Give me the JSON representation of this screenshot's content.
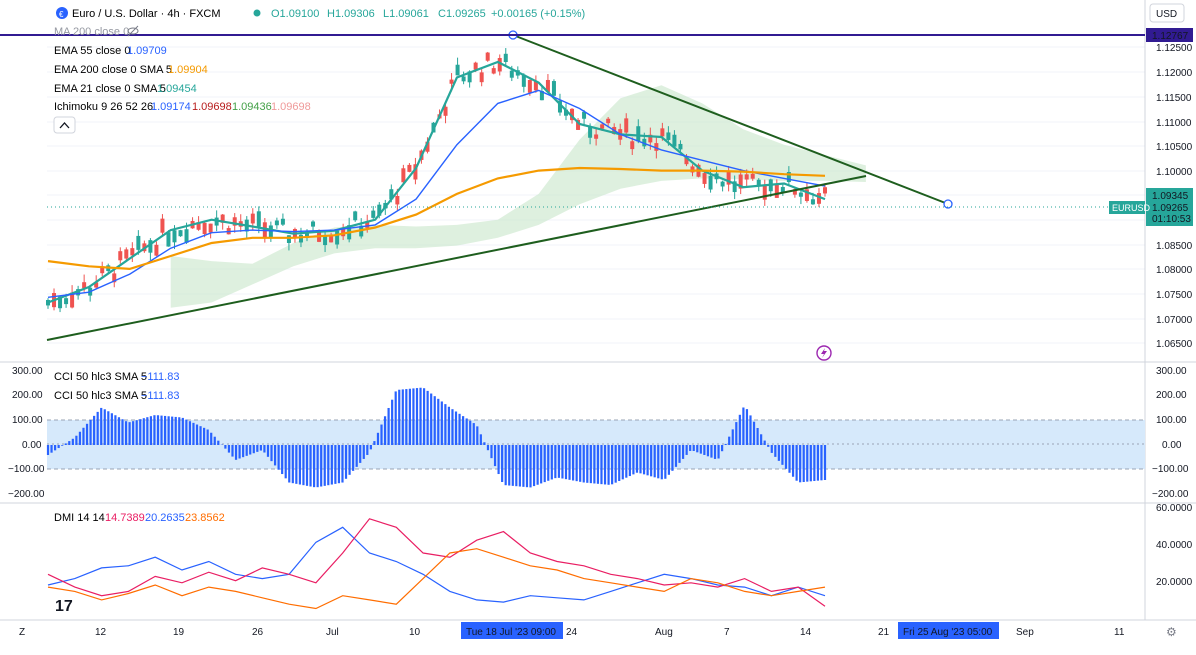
{
  "header": {
    "symbol_title": "Euro / U.S. Dollar · 4h · FXCM",
    "open": "O1.09100",
    "high": "H1.09306",
    "low": "L1.09061",
    "close": "C1.09265",
    "change": "+0.00165 (+0.15%)",
    "currency": "USD"
  },
  "indicators": {
    "ma200": "MA 200 close 0",
    "ema55_label": "EMA 55 close 0",
    "ema55_value": "1.09709",
    "ema200_label": "EMA 200 close 0 SMA 5",
    "ema200_value": "1.09904",
    "ema21_label": "EMA 21 close 0 SMA 5",
    "ema21_value": "1.09454",
    "ichimoku_label": "Ichimoku 9 26 52 26",
    "ichimoku_v1": "1.09174",
    "ichimoku_v2": "1.09698",
    "ichimoku_v3": "1.09436",
    "ichimoku_v4": "1.09698",
    "cci1_label": "CCI 50 hlc3 SMA 5",
    "cci1_value": "−111.83",
    "cci2_label": "CCI 50 hlc3 SMA 5",
    "cci2_value": "−111.83",
    "dmi_label": "DMI 14 14",
    "dmi_v1": "14.7389",
    "dmi_v2": "20.2635",
    "dmi_v3": "23.8562"
  },
  "price_axis": {
    "ticks": [
      "1.12500",
      "1.12000",
      "1.11500",
      "1.11000",
      "1.10500",
      "1.10000",
      "1.08500",
      "1.08000",
      "1.07500",
      "1.07000",
      "1.06500"
    ],
    "badge_high": "1.12767",
    "badge_ema": "1.09345",
    "badge_price": "1.09265",
    "badge_timer": "01:10:53",
    "symbol_tag": "EURUSD"
  },
  "cci_axis": {
    "ticks": [
      "300.00",
      "200.00",
      "100.00",
      "0.00",
      "−100.00",
      "−200.00"
    ]
  },
  "dmi_axis": {
    "ticks": [
      "60.0000",
      "40.0000",
      "20.0000"
    ]
  },
  "time_axis": {
    "labels": [
      "12",
      "19",
      "26",
      "Jul",
      "10",
      "24",
      "Aug",
      "7",
      "14",
      "21",
      "Sep",
      "11"
    ],
    "cursor_label": "Tue 18 Jul '23   09:00",
    "end_label": "Fri 25 Aug '23   05:00",
    "z_btn": "Z",
    "gear_btn": "⚙"
  },
  "logo": "17",
  "colors": {
    "candle_up": "#26a69a",
    "candle_down": "#ef5350",
    "ema21": "#26a69a",
    "ema55": "#2962ff",
    "ema200": "#f59a00",
    "trendline": "#1e5e1e",
    "hline": "#311b92",
    "cci": "#2962ff",
    "cci_band": "#d6e9fb",
    "dmi_plus": "#2962ff",
    "dmi_minus": "#e91e63",
    "adx": "#ff6d00"
  },
  "chart_data": [
    {
      "type": "candlestick",
      "title": "Euro / U.S. Dollar · 4h · FXCM",
      "ylim": [
        1.063,
        1.1295
      ],
      "annotations": {
        "horizontal_line": 1.12767,
        "last_price": 1.09265
      },
      "series": [
        {
          "name": "EMA 21 close 0 SMA 5",
          "y": [
            1.0745,
            1.0775,
            1.083,
            1.0885,
            1.0905,
            1.0892,
            1.0878,
            1.0884,
            1.0905,
            1.1005,
            1.118,
            1.121,
            1.117,
            1.109,
            1.107,
            1.1065,
            1.1,
            1.0968,
            1.0975,
            1.0945
          ]
        },
        {
          "name": "EMA 55 close 0",
          "y": [
            1.0755,
            1.0765,
            1.08,
            1.085,
            1.088,
            1.0885,
            1.0882,
            1.0885,
            1.0895,
            1.0945,
            1.105,
            1.113,
            1.1155,
            1.112,
            1.107,
            1.104,
            1.102,
            1.1,
            1.0985,
            1.097
          ]
        },
        {
          "name": "EMA 200 close 0 SMA 5",
          "y": [
            1.0825,
            1.0815,
            1.081,
            1.0835,
            1.086,
            1.087,
            1.087,
            1.0875,
            1.089,
            1.0915,
            1.0955,
            1.0985,
            1.1,
            1.1005,
            1.1003,
            1.1,
            1.1,
            1.0998,
            1.0993,
            1.099
          ]
        }
      ]
    },
    {
      "type": "bar",
      "title": "CCI 50 hlc3 SMA 5",
      "ylim": [
        -220,
        320
      ],
      "series": [
        {
          "name": "CCI 50 hlc3 SMA 5",
          "y": [
            -40,
            30,
            150,
            90,
            120,
            110,
            60,
            -60,
            -20,
            -150,
            -170,
            -150,
            -30,
            220,
            230,
            150,
            80,
            -160,
            -170,
            -130,
            -150,
            -160,
            -110,
            -140,
            -20,
            -60,
            160,
            -30,
            -150,
            -140
          ]
        }
      ]
    },
    {
      "type": "line",
      "title": "DMI 14 14",
      "ylim": [
        10,
        62
      ],
      "series": [
        {
          "name": "+DI",
          "y": [
            25,
            28,
            33,
            34,
            38,
            32,
            36,
            30,
            28,
            30,
            45,
            52,
            40,
            36,
            30,
            22,
            18,
            17,
            20,
            19,
            18,
            22,
            26,
            30,
            28,
            25,
            24,
            20,
            24,
            20
          ]
        },
        {
          "name": "−DI",
          "y": [
            30,
            24,
            20,
            22,
            29,
            26,
            31,
            27,
            33,
            30,
            26,
            40,
            56,
            52,
            40,
            38,
            46,
            50,
            40,
            36,
            34,
            30,
            28,
            25,
            26,
            24,
            28,
            22,
            24,
            15
          ]
        },
        {
          "name": "ADX",
          "y": [
            24,
            22,
            18,
            21,
            25,
            20,
            24,
            22,
            19,
            16,
            14,
            20,
            18,
            16,
            28,
            40,
            42,
            38,
            34,
            32,
            28,
            26,
            24,
            22,
            28,
            26,
            22,
            20,
            22,
            24
          ]
        }
      ]
    }
  ]
}
